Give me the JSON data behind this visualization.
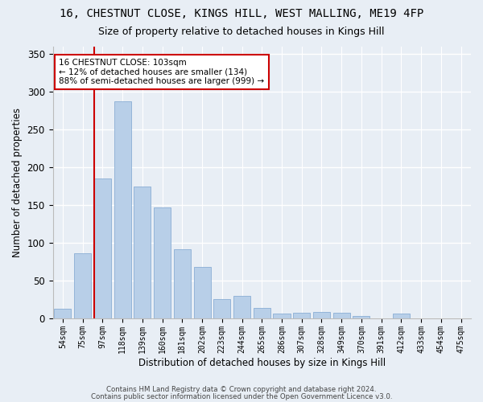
{
  "title1": "16, CHESTNUT CLOSE, KINGS HILL, WEST MALLING, ME19 4FP",
  "title2": "Size of property relative to detached houses in Kings Hill",
  "xlabel": "Distribution of detached houses by size in Kings Hill",
  "ylabel": "Number of detached properties",
  "bar_labels": [
    "54sqm",
    "75sqm",
    "97sqm",
    "118sqm",
    "139sqm",
    "160sqm",
    "181sqm",
    "202sqm",
    "223sqm",
    "244sqm",
    "265sqm",
    "286sqm",
    "307sqm",
    "328sqm",
    "349sqm",
    "370sqm",
    "391sqm",
    "412sqm",
    "433sqm",
    "454sqm",
    "475sqm"
  ],
  "bar_heights": [
    13,
    86,
    185,
    287,
    174,
    147,
    92,
    68,
    26,
    30,
    14,
    6,
    7,
    9,
    7,
    3,
    0,
    6,
    0,
    0,
    0
  ],
  "bar_color": "#b8cfe8",
  "bar_edge_color": "#8aaed4",
  "vline_x_index": 2,
  "annotation_line1": "16 CHESTNUT CLOSE: 103sqm",
  "annotation_line2": "← 12% of detached houses are smaller (134)",
  "annotation_line3": "88% of semi-detached houses are larger (999) →",
  "annotation_box_color": "#ffffff",
  "annotation_box_edge": "#cc0000",
  "vline_color": "#cc0000",
  "ylim": [
    0,
    360
  ],
  "yticks": [
    0,
    50,
    100,
    150,
    200,
    250,
    300,
    350
  ],
  "footnote1": "Contains HM Land Registry data © Crown copyright and database right 2024.",
  "footnote2": "Contains public sector information licensed under the Open Government Licence v3.0.",
  "background_color": "#e8eef5",
  "plot_background": "#e8eef5",
  "title1_fontsize": 10,
  "title2_fontsize": 9,
  "grid_color": "#ffffff",
  "tick_fontsize": 7,
  "ylabel_fontsize": 8.5,
  "xlabel_fontsize": 8.5
}
